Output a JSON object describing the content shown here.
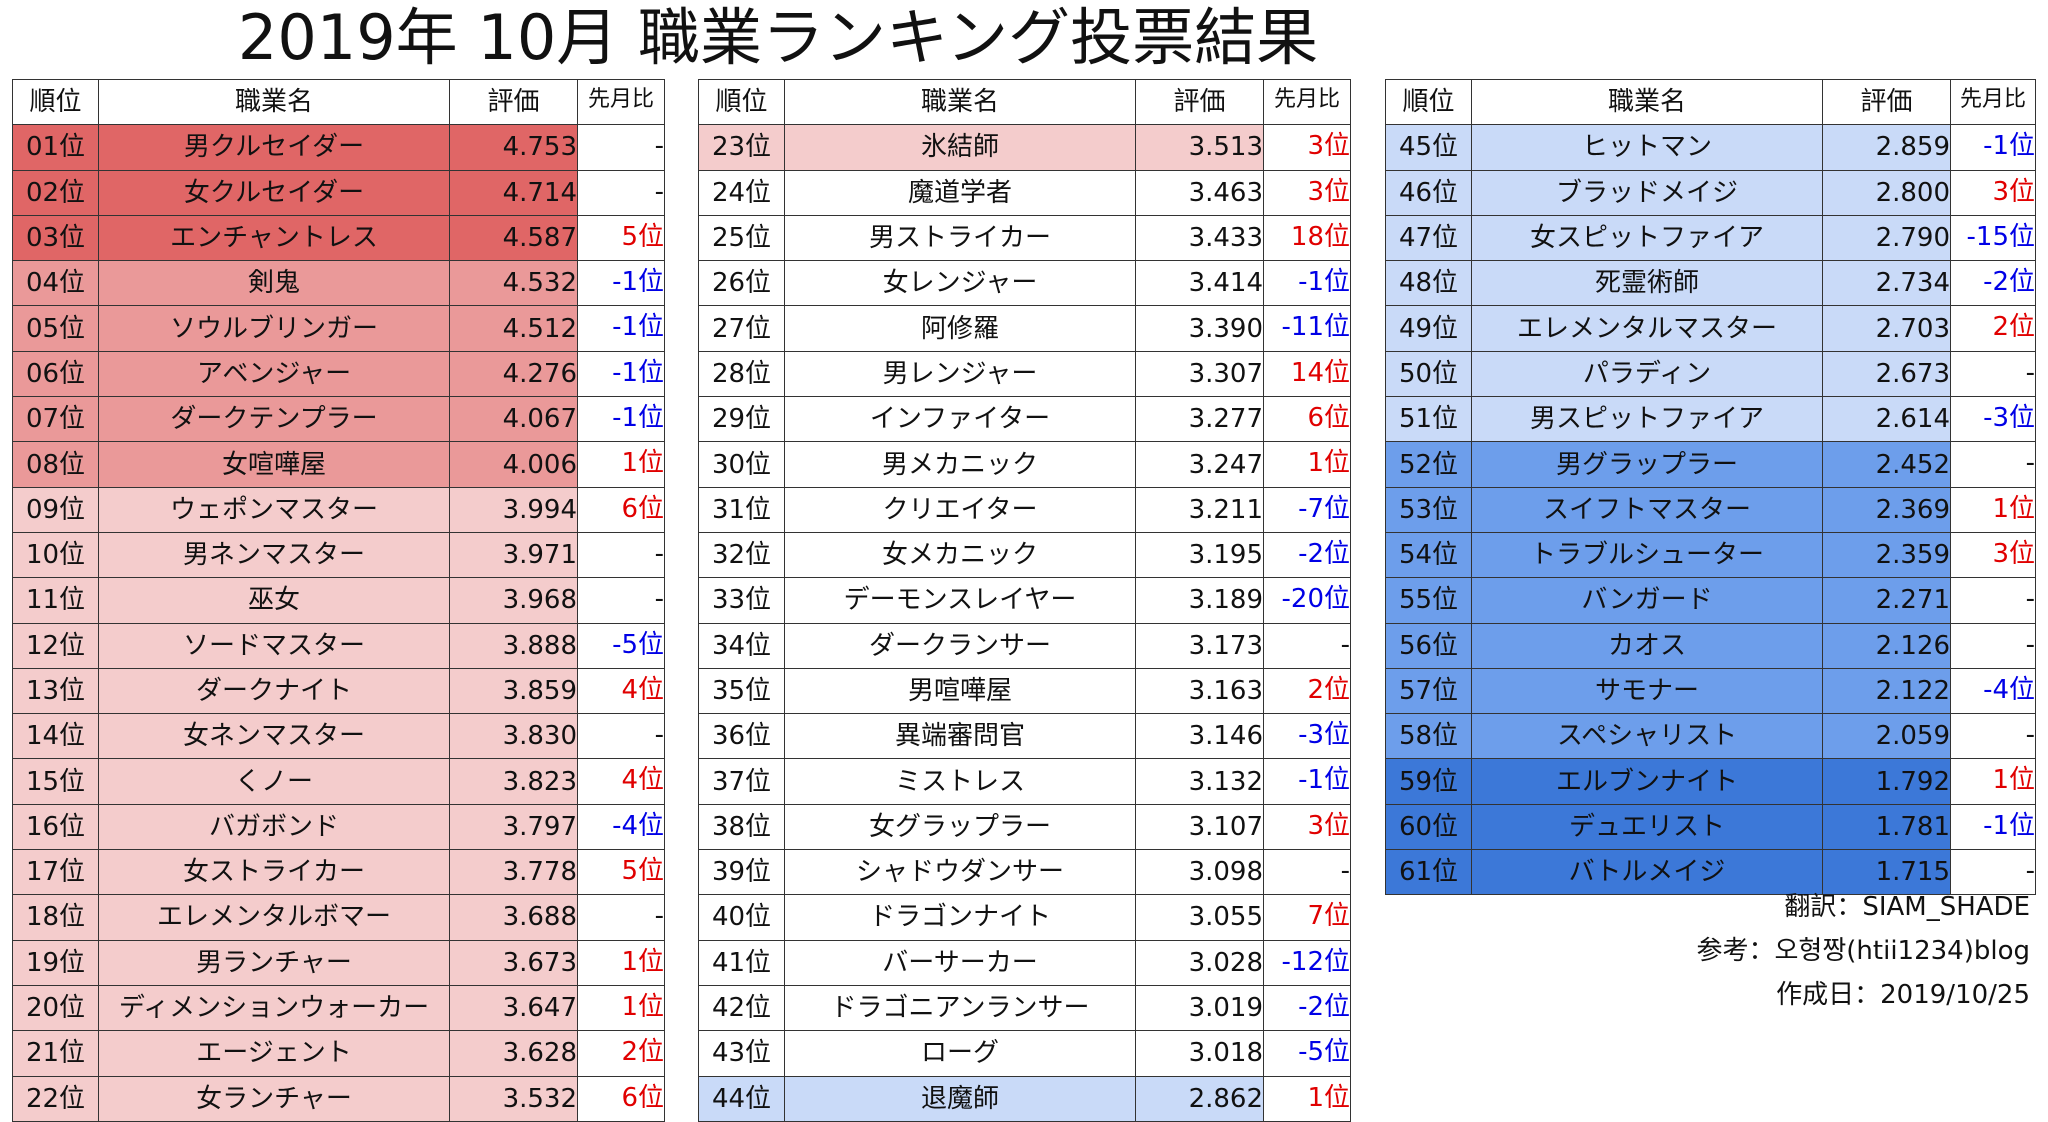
{
  "title": "2019年 10月 職業ランキング投票結果",
  "headers": {
    "rank": "順位",
    "name": "職業名",
    "score": "評価",
    "change": "先月比"
  },
  "colors": {
    "rank1_3": "#e06666",
    "rank4_8": "#ea9999",
    "rank9_23": "#f4cccc",
    "rank24_43": "#ffffff",
    "rank44_51": "#c9daf8",
    "rank52_58": "#6d9eeb",
    "rank59_61": "#3c78d8",
    "up_text": "#e00000",
    "down_text": "#0000e6"
  },
  "rows": [
    {
      "rank": "01位",
      "name": "男クルセイダー",
      "score": "4.753",
      "change": "-"
    },
    {
      "rank": "02位",
      "name": "女クルセイダー",
      "score": "4.714",
      "change": "-"
    },
    {
      "rank": "03位",
      "name": "エンチャントレス",
      "score": "4.587",
      "change": "5位"
    },
    {
      "rank": "04位",
      "name": "剣鬼",
      "score": "4.532",
      "change": "-1位"
    },
    {
      "rank": "05位",
      "name": "ソウルブリンガー",
      "score": "4.512",
      "change": "-1位"
    },
    {
      "rank": "06位",
      "name": "アベンジャー",
      "score": "4.276",
      "change": "-1位"
    },
    {
      "rank": "07位",
      "name": "ダークテンプラー",
      "score": "4.067",
      "change": "-1位"
    },
    {
      "rank": "08位",
      "name": "女喧嘩屋",
      "score": "4.006",
      "change": "1位"
    },
    {
      "rank": "09位",
      "name": "ウェポンマスター",
      "score": "3.994",
      "change": "6位"
    },
    {
      "rank": "10位",
      "name": "男ネンマスター",
      "score": "3.971",
      "change": "-"
    },
    {
      "rank": "11位",
      "name": "巫女",
      "score": "3.968",
      "change": "-"
    },
    {
      "rank": "12位",
      "name": "ソードマスター",
      "score": "3.888",
      "change": "-5位"
    },
    {
      "rank": "13位",
      "name": "ダークナイト",
      "score": "3.859",
      "change": "4位"
    },
    {
      "rank": "14位",
      "name": "女ネンマスター",
      "score": "3.830",
      "change": "-"
    },
    {
      "rank": "15位",
      "name": "くノー",
      "score": "3.823",
      "change": "4位"
    },
    {
      "rank": "16位",
      "name": "バガボンド",
      "score": "3.797",
      "change": "-4位"
    },
    {
      "rank": "17位",
      "name": "女ストライカー",
      "score": "3.778",
      "change": "5位"
    },
    {
      "rank": "18位",
      "name": "エレメンタルボマー",
      "score": "3.688",
      "change": "-"
    },
    {
      "rank": "19位",
      "name": "男ランチャー",
      "score": "3.673",
      "change": "1位"
    },
    {
      "rank": "20位",
      "name": "ディメンションウォーカー",
      "score": "3.647",
      "change": "1位"
    },
    {
      "rank": "21位",
      "name": "エージェント",
      "score": "3.628",
      "change": "2位"
    },
    {
      "rank": "22位",
      "name": "女ランチャー",
      "score": "3.532",
      "change": "6位"
    },
    {
      "rank": "23位",
      "name": "氷結師",
      "score": "3.513",
      "change": "3位"
    },
    {
      "rank": "24位",
      "name": "魔道学者",
      "score": "3.463",
      "change": "3位"
    },
    {
      "rank": "25位",
      "name": "男ストライカー",
      "score": "3.433",
      "change": "18位"
    },
    {
      "rank": "26位",
      "name": "女レンジャー",
      "score": "3.414",
      "change": "-1位"
    },
    {
      "rank": "27位",
      "name": "阿修羅",
      "score": "3.390",
      "change": "-11位"
    },
    {
      "rank": "28位",
      "name": "男レンジャー",
      "score": "3.307",
      "change": "14位"
    },
    {
      "rank": "29位",
      "name": "インファイター",
      "score": "3.277",
      "change": "6位"
    },
    {
      "rank": "30位",
      "name": "男メカニック",
      "score": "3.247",
      "change": "1位"
    },
    {
      "rank": "31位",
      "name": "クリエイター",
      "score": "3.211",
      "change": "-7位"
    },
    {
      "rank": "32位",
      "name": "女メカニック",
      "score": "3.195",
      "change": "-2位"
    },
    {
      "rank": "33位",
      "name": "デーモンスレイヤー",
      "score": "3.189",
      "change": "-20位"
    },
    {
      "rank": "34位",
      "name": "ダークランサー",
      "score": "3.173",
      "change": "-"
    },
    {
      "rank": "35位",
      "name": "男喧嘩屋",
      "score": "3.163",
      "change": "2位"
    },
    {
      "rank": "36位",
      "name": "異端審問官",
      "score": "3.146",
      "change": "-3位"
    },
    {
      "rank": "37位",
      "name": "ミストレス",
      "score": "3.132",
      "change": "-1位"
    },
    {
      "rank": "38位",
      "name": "女グラップラー",
      "score": "3.107",
      "change": "3位"
    },
    {
      "rank": "39位",
      "name": "シャドウダンサー",
      "score": "3.098",
      "change": "-"
    },
    {
      "rank": "40位",
      "name": "ドラゴンナイト",
      "score": "3.055",
      "change": "7位"
    },
    {
      "rank": "41位",
      "name": "バーサーカー",
      "score": "3.028",
      "change": "-12位"
    },
    {
      "rank": "42位",
      "name": "ドラゴニアンランサー",
      "score": "3.019",
      "change": "-2位"
    },
    {
      "rank": "43位",
      "name": "ローグ",
      "score": "3.018",
      "change": "-5位"
    },
    {
      "rank": "44位",
      "name": "退魔師",
      "score": "2.862",
      "change": "1位"
    },
    {
      "rank": "45位",
      "name": "ヒットマン",
      "score": "2.859",
      "change": "-1位"
    },
    {
      "rank": "46位",
      "name": "ブラッドメイジ",
      "score": "2.800",
      "change": "3位"
    },
    {
      "rank": "47位",
      "name": "女スピットファイア",
      "score": "2.790",
      "change": "-15位"
    },
    {
      "rank": "48位",
      "name": "死霊術師",
      "score": "2.734",
      "change": "-2位"
    },
    {
      "rank": "49位",
      "name": "エレメンタルマスター",
      "score": "2.703",
      "change": "2位"
    },
    {
      "rank": "50位",
      "name": "パラディン",
      "score": "2.673",
      "change": "-"
    },
    {
      "rank": "51位",
      "name": "男スピットファイア",
      "score": "2.614",
      "change": "-3位"
    },
    {
      "rank": "52位",
      "name": "男グラップラー",
      "score": "2.452",
      "change": "-"
    },
    {
      "rank": "53位",
      "name": "スイフトマスター",
      "score": "2.369",
      "change": "1位"
    },
    {
      "rank": "54位",
      "name": "トラブルシューター",
      "score": "2.359",
      "change": "3位"
    },
    {
      "rank": "55位",
      "name": "バンガード",
      "score": "2.271",
      "change": "-"
    },
    {
      "rank": "56位",
      "name": "カオス",
      "score": "2.126",
      "change": "-"
    },
    {
      "rank": "57位",
      "name": "サモナー",
      "score": "2.122",
      "change": "-4位"
    },
    {
      "rank": "58位",
      "name": "スペシャリスト",
      "score": "2.059",
      "change": "-"
    },
    {
      "rank": "59位",
      "name": "エルブンナイト",
      "score": "1.792",
      "change": "1位"
    },
    {
      "rank": "60位",
      "name": "デュエリスト",
      "score": "1.781",
      "change": "-1位"
    },
    {
      "rank": "61位",
      "name": "バトルメイジ",
      "score": "1.715",
      "change": "-"
    }
  ],
  "credits": {
    "translator": "翻訳：SIAM_SHADE",
    "reference": "参考：오형짱(htii1234)blog",
    "created": "作成日：2019/10/25"
  }
}
